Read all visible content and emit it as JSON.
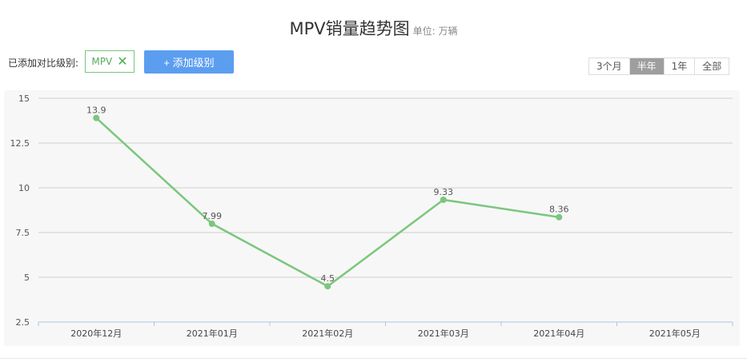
{
  "header": {
    "title": "MPV销量趋势图",
    "unit": "单位: 万辆"
  },
  "compare": {
    "label": "已添加对比级别:",
    "tag": "MPV",
    "tag_remove_icon": "close-icon",
    "add_button": "+ 添加级别"
  },
  "ranges": [
    {
      "label": "3个月",
      "active": false
    },
    {
      "label": "半年",
      "active": true
    },
    {
      "label": "1年",
      "active": false
    },
    {
      "label": "全部",
      "active": false
    }
  ],
  "chart_data": {
    "type": "line",
    "categories": [
      "2020年12月",
      "2021年01月",
      "2021年02月",
      "2021年03月",
      "2021年04月",
      "2021年05月"
    ],
    "series": [
      {
        "values": [
          13.9,
          7.99,
          4.5,
          9.33,
          8.36,
          null
        ],
        "color": "#7ac77d"
      }
    ],
    "yticks": [
      "15",
      "12.5",
      "10",
      "7.5",
      "5",
      "2.5"
    ],
    "ylim": [
      2.5,
      15
    ],
    "grid": true,
    "data_labels": true
  }
}
